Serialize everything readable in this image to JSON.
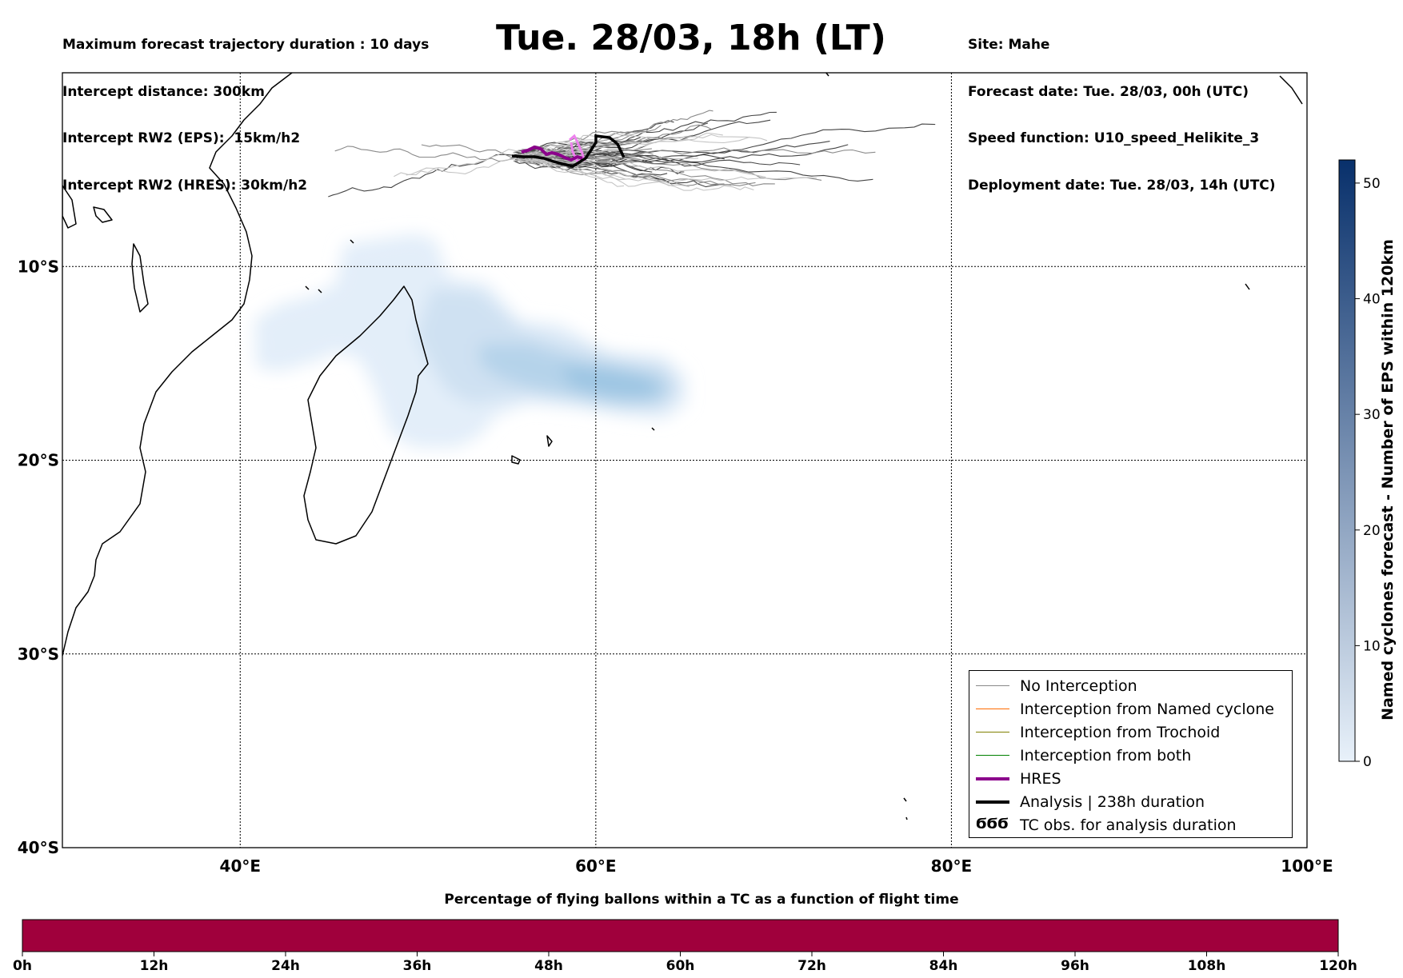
{
  "title": "Tue. 28/03, 18h (LT)",
  "info_left": [
    "Maximum forecast trajectory duration : 10 days",
    "Intercept distance: 300km",
    "Intercept RW2 (EPS):  15km/h2",
    "Intercept RW2 (HRES): 30km/h2"
  ],
  "info_right": [
    "Site: Mahe",
    "Forecast date: Tue. 28/03, 00h (UTC)",
    "Speed function: U10_speed_Helikite_3",
    "Deployment date: Tue. 28/03, 14h (UTC)"
  ],
  "map": {
    "lon_range": [
      30,
      100
    ],
    "lat_range": [
      -40,
      0
    ],
    "lat_labels": [
      {
        "lat": -10,
        "text": "10°S"
      },
      {
        "lat": -20,
        "text": "20°S"
      },
      {
        "lat": -30,
        "text": "30°S"
      },
      {
        "lat": -40,
        "text": "40°S"
      }
    ],
    "lon_labels": [
      {
        "lon": 40,
        "text": "40°E"
      },
      {
        "lon": 60,
        "text": "60°E"
      },
      {
        "lon": 80,
        "text": "80°E"
      },
      {
        "lon": 100,
        "text": "100°E"
      }
    ],
    "colors": {
      "no_interception": "#888888",
      "named_cyclone": "#ff6a00",
      "trochoid": "#808000",
      "both": "#008000",
      "hres": "#8b008b",
      "analysis": "#000000",
      "tc_obs": "#ee82ee"
    }
  },
  "legend": {
    "items": [
      {
        "label": "No Interception",
        "color": "#888888",
        "width": 1.2
      },
      {
        "label": "Interception from Named cyclone",
        "color": "#ff6a00",
        "width": 1.2
      },
      {
        "label": "Interception from Trochoid",
        "color": "#808000",
        "width": 1.2
      },
      {
        "label": "Interception from both",
        "color": "#008000",
        "width": 1.2
      },
      {
        "label": "HRES",
        "color": "#8b008b",
        "width": 4
      },
      {
        "label": "Analysis | 238h duration",
        "color": "#000000",
        "width": 4
      }
    ],
    "tc_obs_glyph": "ϬϬϬ",
    "tc_obs_label": "TC obs. for analysis duration"
  },
  "colorbar_v": {
    "label": "Named cyclones forecast - Number of EPS within 120km",
    "ticks": [
      0,
      10,
      20,
      30,
      40,
      50
    ],
    "range": [
      0,
      52
    ],
    "color_low": "#e8f1fa",
    "color_high": "#08306b"
  },
  "colorbar_h": {
    "title": "Percentage of flying ballons within a TC as a function of flight time",
    "ticks": [
      "0h",
      "12h",
      "24h",
      "36h",
      "48h",
      "60h",
      "72h",
      "84h",
      "96h",
      "108h",
      "120h"
    ],
    "fill_color": "#a0003c"
  }
}
